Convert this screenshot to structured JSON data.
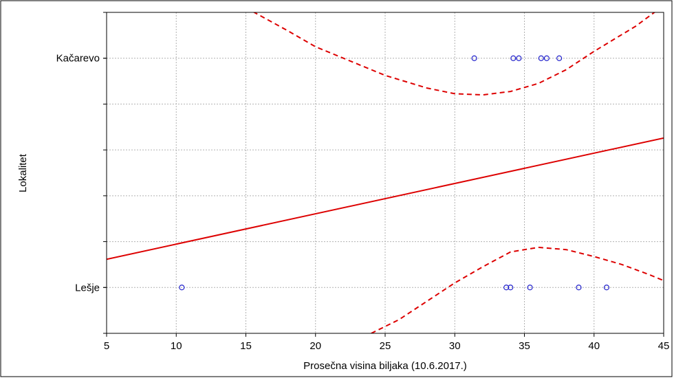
{
  "chart_data": {
    "type": "scatter",
    "title": "",
    "xlabel": "Prosečna visina biljaka (10.6.2017.)",
    "ylabel": "Lokalitet",
    "xlim": [
      5,
      45
    ],
    "ylim": [
      -0.2,
      1.2
    ],
    "x_ticks": [
      "5",
      "10",
      "15",
      "20",
      "25",
      "30",
      "35",
      "40",
      "45"
    ],
    "y_categories": [
      "Lešje",
      "Kačarevo"
    ],
    "grid": true,
    "legend": "none",
    "series": [
      {
        "category": "Kačarevo",
        "style": "scatter",
        "x": [
          31.4,
          34.2,
          34.6,
          36.2,
          36.6,
          37.5
        ],
        "y": [
          1,
          1,
          1,
          1,
          1,
          1
        ]
      },
      {
        "category": "Lešje",
        "style": "scatter",
        "x": [
          10.4,
          33.7,
          34.0,
          35.4,
          38.9,
          40.9
        ],
        "y": [
          0,
          0,
          0,
          0,
          0,
          0
        ]
      },
      {
        "style": "regression-line",
        "x": [
          5,
          45
        ],
        "y": [
          0.123,
          0.652
        ]
      },
      {
        "style": "upper-confidence-band",
        "x": [
          15,
          18,
          20,
          22,
          25,
          28,
          30,
          32,
          34,
          36,
          38,
          40,
          43,
          45
        ],
        "y": [
          1.22,
          1.12,
          1.05,
          1.0,
          0.925,
          0.87,
          0.845,
          0.84,
          0.855,
          0.89,
          0.95,
          1.03,
          1.14,
          1.23
        ]
      },
      {
        "style": "lower-confidence-band",
        "x": [
          24,
          26,
          28,
          30,
          32,
          34,
          36,
          38,
          40,
          42,
          44,
          45
        ],
        "y": [
          -0.2,
          -0.14,
          -0.06,
          0.02,
          0.09,
          0.155,
          0.175,
          0.165,
          0.135,
          0.1,
          0.055,
          0.03
        ]
      }
    ],
    "colors": {
      "points": "#2222cc",
      "line": "#dd0000",
      "grid": "#b0b0b0",
      "frame": "#000000"
    }
  }
}
